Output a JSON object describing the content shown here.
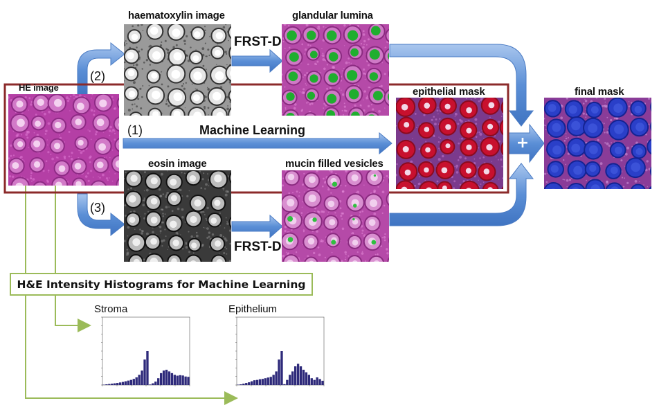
{
  "labels": {
    "he_image": "HE image",
    "haematoxylin_image": "haematoxylin image",
    "glandular_lumina": "glandular lumina",
    "epithelial_mask": "epithelial mask",
    "final_mask": "final mask",
    "eosin_image": "eosin image",
    "mucin_filled_vesicles": "mucin filled vesicles",
    "frst_d_top": "FRST-D",
    "frst_d_bottom": "FRST-D",
    "machine_learning": "Machine Learning",
    "path_1": "(1)",
    "path_2": "(2)",
    "path_3": "(3)",
    "combine_symbol": "+"
  },
  "histogram_section": {
    "box_label": "H&E Intensity Histograms for Machine Learning",
    "stroma_title": "Stroma",
    "epithelium_title": "Epithelium"
  },
  "colors": {
    "arrow_blue": "#5b8fd6",
    "arrow_blue_light": "#a9c6ee",
    "highlight_border": "#8b2a2a",
    "connector_green": "#9bbb59",
    "histogram_bar": "#2e2a7a",
    "he_pink": "#c558b8",
    "lumina_green": "#1fae2f",
    "epithelial_red": "#c8102e",
    "final_blue": "#2a3fc8"
  },
  "chart_data": [
    {
      "type": "bar",
      "title": "Stroma",
      "values": [
        0.002,
        0.004,
        0.006,
        0.008,
        0.01,
        0.012,
        0.015,
        0.018,
        0.022,
        0.026,
        0.03,
        0.036,
        0.045,
        0.06,
        0.085,
        0.15,
        0.2,
        0.003,
        0.01,
        0.02,
        0.04,
        0.07,
        0.085,
        0.09,
        0.08,
        0.07,
        0.06,
        0.055,
        0.058,
        0.056,
        0.05,
        0.048
      ],
      "ylim": [
        0,
        0.4
      ]
    },
    {
      "type": "bar",
      "title": "Epithelium",
      "values": [
        0.002,
        0.004,
        0.008,
        0.012,
        0.016,
        0.022,
        0.028,
        0.03,
        0.034,
        0.036,
        0.04,
        0.044,
        0.048,
        0.06,
        0.08,
        0.15,
        0.2,
        0.005,
        0.03,
        0.06,
        0.08,
        0.11,
        0.125,
        0.11,
        0.09,
        0.075,
        0.06,
        0.04,
        0.03,
        0.045,
        0.035,
        0.025
      ],
      "ylim": [
        0,
        0.4
      ]
    }
  ]
}
